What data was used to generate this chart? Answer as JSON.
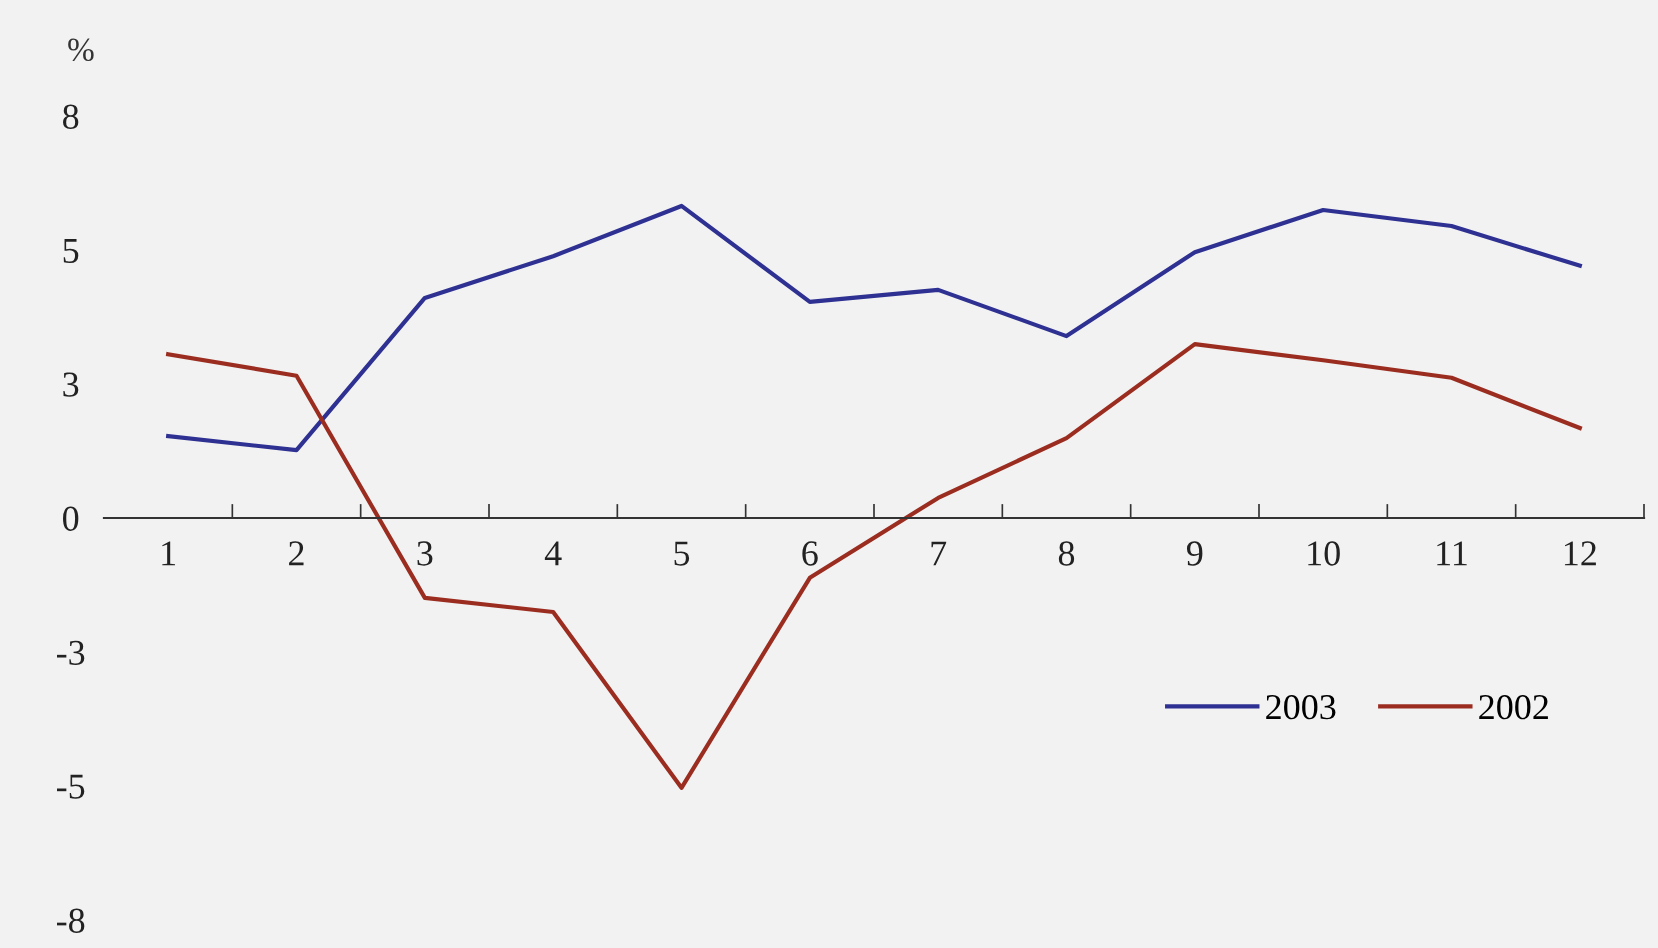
{
  "chart_data": {
    "type": "line",
    "ylabel": "%",
    "categories": [
      "1",
      "2",
      "3",
      "4",
      "5",
      "6",
      "7",
      "8",
      "9",
      "10",
      "11",
      "12"
    ],
    "series": [
      {
        "name": "2003",
        "color": "#2e3192",
        "values": [
          1.63,
          1.35,
          4.38,
          5.21,
          6.21,
          4.3,
          4.54,
          3.62,
          5.29,
          6.13,
          5.81,
          5.02
        ]
      },
      {
        "name": "2002",
        "color": "#9b2d20",
        "values": [
          3.26,
          2.83,
          -1.59,
          -1.87,
          -5.37,
          -1.19,
          0.4,
          1.59,
          3.46,
          3.14,
          2.79,
          1.79
        ]
      }
    ],
    "ylim": [
      -8,
      8
    ],
    "yticks": [
      8,
      {
        "value": 5.33,
        "label": "5"
      },
      {
        "value": 2.67,
        "label": "3"
      },
      0,
      {
        "value": -2.67,
        "label": "-3"
      },
      {
        "value": -5.33,
        "label": "-5"
      },
      -8
    ],
    "grid": false,
    "legend": "bottom right",
    "marker": "none",
    "line_style": "solid"
  }
}
